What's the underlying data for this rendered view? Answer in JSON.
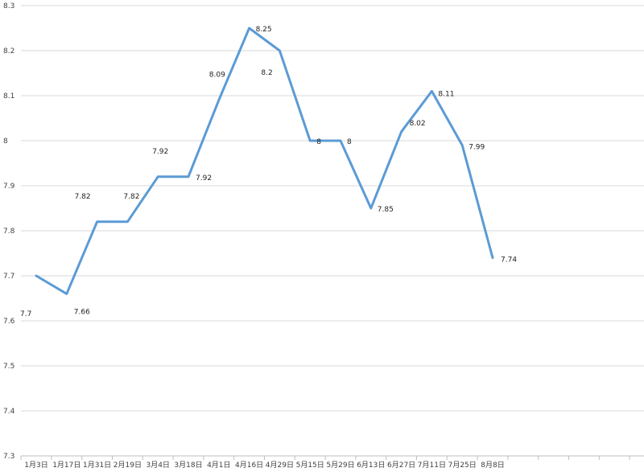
{
  "chart_data": {
    "type": "line",
    "title": "",
    "xlabel": "",
    "ylabel": "",
    "categories": [
      "1月3日",
      "1月17日",
      "1月31日",
      "2月19日",
      "3月4日",
      "3月18日",
      "4月1日",
      "4月16日",
      "4月29日",
      "5月15日",
      "5月29日",
      "6月13日",
      "6月27日",
      "7月11日",
      "7月25日",
      "8月8日"
    ],
    "series": [
      {
        "values": [
          7.7,
          7.66,
          7.82,
          7.82,
          7.92,
          7.92,
          8.09,
          8.25,
          8.2,
          8.0,
          8.0,
          7.85,
          8.02,
          8.11,
          7.99,
          7.74
        ],
        "labels": [
          "7.7",
          "7.66",
          "7.82",
          "7.82",
          "7.92",
          "7.92",
          "8.09",
          "8.25",
          "8.2",
          "8",
          "8",
          "7.85",
          "8.02",
          "8.11",
          "7.99",
          "7.74"
        ]
      }
    ],
    "ylim": [
      7.3,
      8.3
    ],
    "yticks": [
      "7.3",
      "7.4",
      "7.5",
      "7.6",
      "7.7",
      "7.8",
      "7.9",
      "8",
      "8.1",
      "8.2",
      "8.3"
    ],
    "grid": true,
    "legend": "none",
    "line_color": "#5b9bd5"
  }
}
